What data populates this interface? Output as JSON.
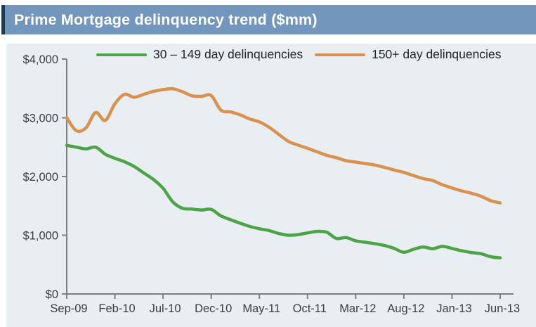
{
  "header": {
    "title": "Prime Mortgage delinquency trend ($mm)"
  },
  "colors": {
    "header_bg": "#7396bd",
    "header_accent": "#203a56",
    "panel_bg": "#e9eef3",
    "axis": "#7f7f7f",
    "series_green": "#4da348",
    "series_orange": "#d9914f",
    "tick_label_text": "#3d3d3d"
  },
  "legend": {
    "items": [
      {
        "label": "30 – 149 day delinquencies",
        "color_key": "series_green"
      },
      {
        "label": "150+ day delinquencies",
        "color_key": "series_orange"
      }
    ]
  },
  "chart_data": {
    "type": "line",
    "title": "Prime Mortgage delinquency trend ($mm)",
    "xlabel": "",
    "ylabel": "",
    "ylim": [
      0,
      4000
    ],
    "y_tick_labels": [
      "$0",
      "$1,000",
      "$2,000",
      "$3,000",
      "$4,000"
    ],
    "y_tick_values": [
      0,
      1000,
      2000,
      3000,
      4000
    ],
    "grid": false,
    "legend_position": "top",
    "x": [
      "Sep-09",
      "Oct-09",
      "Nov-09",
      "Dec-09",
      "Jan-10",
      "Feb-10",
      "Mar-10",
      "Apr-10",
      "May-10",
      "Jun-10",
      "Jul-10",
      "Aug-10",
      "Sep-10",
      "Oct-10",
      "Nov-10",
      "Dec-10",
      "Jan-11",
      "Feb-11",
      "Mar-11",
      "Apr-11",
      "May-11",
      "Jun-11",
      "Jul-11",
      "Aug-11",
      "Sep-11",
      "Oct-11",
      "Nov-11",
      "Dec-11",
      "Jan-12",
      "Feb-12",
      "Mar-12",
      "Apr-12",
      "May-12",
      "Jun-12",
      "Jul-12",
      "Aug-12",
      "Sep-12",
      "Oct-12",
      "Nov-12",
      "Dec-12",
      "Jan-13",
      "Feb-13",
      "Mar-13",
      "Apr-13",
      "May-13",
      "Jun-13"
    ],
    "x_tick_label_every": 5,
    "x_tick_labels": [
      "Sep-09",
      "Feb-10",
      "Jul-10",
      "Dec-10",
      "May-11",
      "Oct-11",
      "Mar-12",
      "Aug-12",
      "Jan-13",
      "Jun-13"
    ],
    "series": [
      {
        "name": "30 – 149 day delinquencies",
        "color_key": "series_green",
        "values": [
          2530,
          2500,
          2470,
          2500,
          2380,
          2310,
          2250,
          2170,
          2060,
          1950,
          1800,
          1570,
          1460,
          1445,
          1430,
          1440,
          1330,
          1265,
          1205,
          1150,
          1110,
          1080,
          1030,
          1000,
          1010,
          1040,
          1065,
          1050,
          945,
          960,
          905,
          880,
          855,
          825,
          775,
          710,
          760,
          800,
          770,
          810,
          775,
          735,
          705,
          685,
          635,
          615
        ]
      },
      {
        "name": "150+ day delinquencies",
        "color_key": "series_orange",
        "values": [
          3000,
          2780,
          2830,
          3090,
          2955,
          3240,
          3400,
          3350,
          3400,
          3450,
          3480,
          3495,
          3445,
          3375,
          3365,
          3380,
          3130,
          3100,
          3050,
          2980,
          2930,
          2840,
          2720,
          2600,
          2535,
          2480,
          2420,
          2360,
          2320,
          2270,
          2245,
          2220,
          2195,
          2155,
          2110,
          2070,
          2015,
          1965,
          1930,
          1860,
          1805,
          1755,
          1715,
          1665,
          1590,
          1550
        ]
      }
    ]
  }
}
